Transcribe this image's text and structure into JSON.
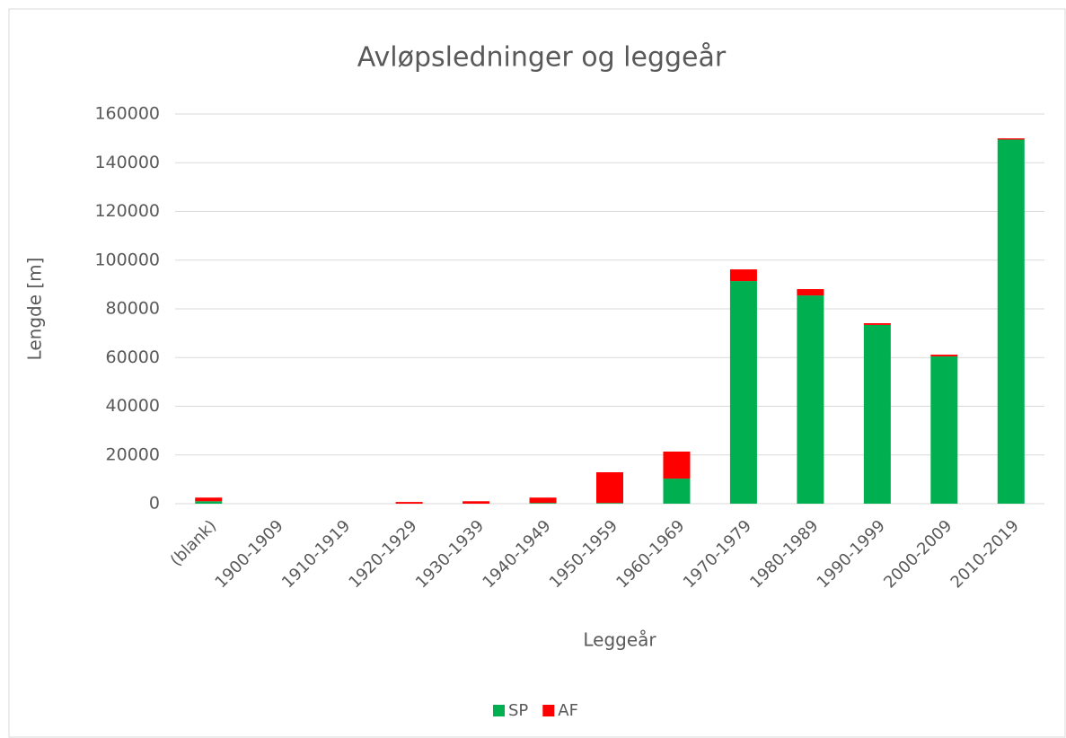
{
  "chart_data": {
    "type": "stacked_bar",
    "title": "Avløpsledninger og leggeår",
    "x_label": "Leggeår",
    "y_label": "Lengde [m]",
    "categories": [
      "(blank)",
      "1900-1909",
      "1910-1919",
      "1920-1929",
      "1930-1939",
      "1940-1949",
      "1950-1959",
      "1960-1969",
      "1970-1979",
      "1980-1989",
      "1990-1999",
      "2000-2009",
      "2010-2019"
    ],
    "series": [
      {
        "name": "SP",
        "color": "#00b050",
        "values": [
          1000,
          0,
          0,
          0,
          0,
          300,
          300,
          10300,
          91400,
          85500,
          73400,
          60500,
          149500
        ]
      },
      {
        "name": "AF",
        "color": "#ff0000",
        "values": [
          1500,
          0,
          0,
          700,
          1000,
          2200,
          12600,
          11100,
          4800,
          2600,
          700,
          700,
          500
        ]
      }
    ],
    "ylim": [
      0,
      160000
    ],
    "yticks": [
      0,
      20000,
      40000,
      60000,
      80000,
      100000,
      120000,
      140000,
      160000
    ],
    "grid": true,
    "legend": "bottom"
  }
}
